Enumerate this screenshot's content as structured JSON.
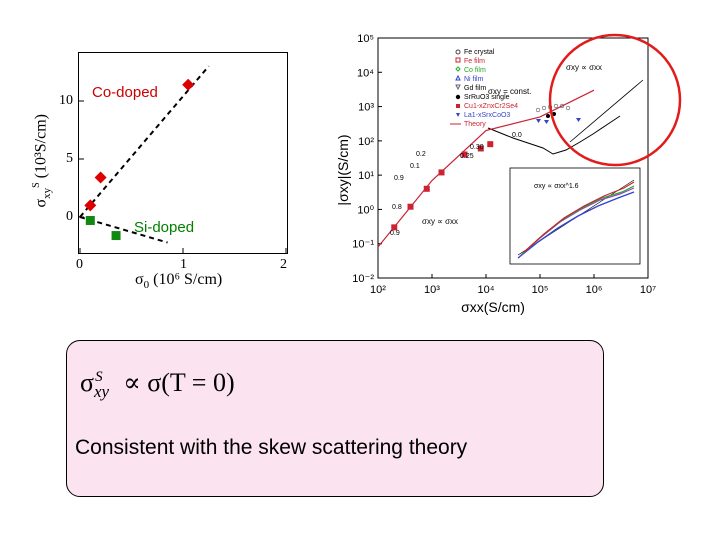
{
  "left_plot": {
    "annotation_red": "Co-doped",
    "annotation_green": "Si-doped",
    "ytick_labels": [
      "10",
      "5",
      "0"
    ],
    "xtick_labels": [
      "0",
      "1",
      "2"
    ],
    "ylabel_main": "σ",
    "ylabel_sub": "xy",
    "ylabel_sup": "S",
    "ylabel_unit": "(10³S/cm)",
    "xlabel_main": "σ",
    "xlabel_sub": "0",
    "xlabel_unit": "(10⁶ S/cm)",
    "colors": {
      "co_doped": "#dd0000",
      "si_doped": "#118811"
    }
  },
  "chart_data": [
    {
      "type": "scatter",
      "xlabel": "σ0 (10⁶ S/cm)",
      "ylabel": "σxy S (10³S/cm)",
      "xlim": [
        0,
        2
      ],
      "ylim": [
        -2,
        13
      ],
      "xticks": [
        0,
        1,
        2
      ],
      "yticks": [
        0,
        5,
        10
      ],
      "series": [
        {
          "name": "Co-doped",
          "marker": "diamond",
          "color": "#dd0000",
          "x": [
            0.1,
            0.2,
            1.05
          ],
          "y": [
            1.0,
            3.4,
            11.4
          ]
        },
        {
          "name": "Si-doped",
          "marker": "square",
          "color": "#118811",
          "x": [
            0.1,
            0.35
          ],
          "y": [
            -0.3,
            -1.6
          ]
        }
      ],
      "fit_lines": [
        {
          "x": [
            0.0,
            1.25
          ],
          "y": [
            0.0,
            13.0
          ]
        },
        {
          "x": [
            0.0,
            0.85
          ],
          "y": [
            0.0,
            -2.2
          ]
        }
      ]
    },
    {
      "type": "scatter",
      "xscale": "log",
      "yscale": "log",
      "xlabel": "σxx(S/cm)",
      "ylabel": "|σxy|(S/cm)",
      "xlim": [
        100,
        10000000
      ],
      "ylim": [
        0.01,
        100000
      ],
      "xtick_labels": [
        "10²",
        "10³",
        "10⁴",
        "10⁵",
        "10⁶",
        "10⁷"
      ],
      "ytick_labels": [
        "10⁵",
        "10⁴",
        "10³",
        "10²",
        "10¹",
        "10⁰",
        "10⁻¹",
        "10⁻²"
      ],
      "legend": {
        "placement": "top",
        "entries": [
          "Fe crystal",
          "Fe film",
          "Co film",
          "Ni film",
          "Gd film",
          "SrRuO3 single",
          "Cu1-xZnxCr2Se4",
          "La1-xSrxCoO3",
          "Theory"
        ]
      },
      "annotations": [
        "σxy = const.",
        "σxy ∝ σxx",
        "σxy ∝ σxx^1.6",
        "0.0",
        "0.30",
        "0.25",
        "0.2",
        "0.1",
        "0.9",
        "0.8",
        "0.9"
      ],
      "series": [
        {
          "name": "Cu1-xZnxCr2Se4",
          "marker": "square",
          "color": "#cc2233",
          "x": [
            200,
            400,
            800,
            1500,
            4000,
            8000,
            12000
          ],
          "y": [
            0.3,
            1.2,
            4,
            12,
            40,
            60,
            80
          ]
        },
        {
          "name": "Theory",
          "marker": "line",
          "color": "#cc2233",
          "x": [
            100,
            1000,
            10000,
            100000,
            1000000
          ],
          "y": [
            0.08,
            7,
            200,
            500,
            3000
          ]
        }
      ]
    }
  ],
  "formula": {
    "main": "σ",
    "sub": "xy",
    "sup": "S",
    "rest": "∝ σ(T = 0)"
  },
  "note": "Consistent with the skew scattering theory"
}
